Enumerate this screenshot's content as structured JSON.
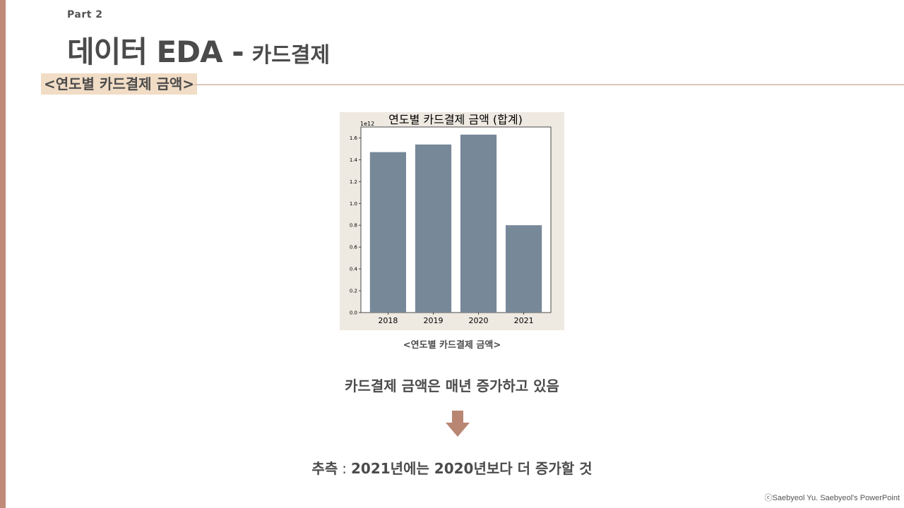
{
  "header": {
    "part": "Part 2",
    "title_main": "데이터 EDA -",
    "title_sub": "카드결제"
  },
  "section": {
    "tag": "<연도별 카드결제 금액>"
  },
  "chart_data": {
    "type": "bar",
    "title": "연도별 카드결제 금액 (합계)",
    "categories": [
      "2018",
      "2019",
      "2020",
      "2021"
    ],
    "values": [
      1470000000000.0,
      1540000000000.0,
      1630000000000.0,
      800000000000.0
    ],
    "scale_label": "1e12",
    "yticks": [
      "0.0",
      "0.2",
      "0.4",
      "0.6",
      "0.8",
      "1.0",
      "1.2",
      "1.4",
      "1.6"
    ],
    "ylim": [
      0,
      1700000000000.0
    ],
    "xlabel": "",
    "ylabel": "",
    "bar_color": "#778899",
    "grid": false
  },
  "caption": "<연도별 카드결제 금액>",
  "statement": "카드결제 금액은 매년 증가하고 있음",
  "conclusion": {
    "label": "추측",
    "separator": ":",
    "text": "2021년에는 2020년보다 더 증가할 것"
  },
  "colors": {
    "accent": "#c08a78",
    "tag_bg": "#f1dcc5",
    "chart_bg": "#eee9e1",
    "arrow": "#b98674"
  },
  "footer": {
    "copyright": "ⓒSaebyeol Yu. Saebyeol's PowerPoint"
  }
}
